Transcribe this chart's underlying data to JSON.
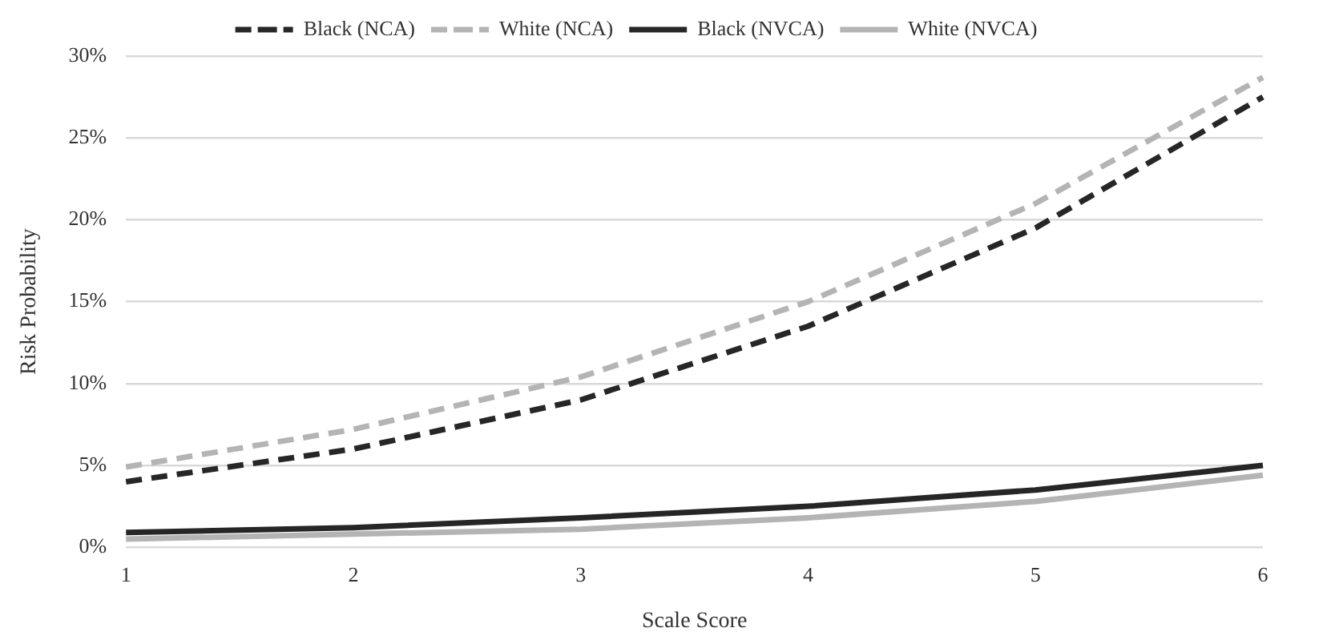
{
  "chart_data": {
    "type": "line",
    "xlabel": "Scale Score",
    "ylabel": "Risk Probability",
    "categories": [
      "1",
      "2",
      "3",
      "4",
      "5",
      "6"
    ],
    "series": [
      {
        "name": "Black (NCA)",
        "color": "#262626",
        "line_style": "dashed",
        "values": [
          4.0,
          6.0,
          9.0,
          13.5,
          19.5,
          27.5
        ]
      },
      {
        "name": "White (NCA)",
        "color": "#b4b4b4",
        "line_style": "dashed",
        "values": [
          4.9,
          7.2,
          10.4,
          15.0,
          21.0,
          28.7
        ]
      },
      {
        "name": "Black (NVCA)",
        "color": "#262626",
        "line_style": "solid",
        "values": [
          0.9,
          1.2,
          1.8,
          2.5,
          3.5,
          5.0
        ]
      },
      {
        "name": "White (NVCA)",
        "color": "#b4b4b4",
        "line_style": "solid",
        "values": [
          0.5,
          0.8,
          1.1,
          1.8,
          2.8,
          4.4
        ]
      }
    ],
    "ylim": [
      0,
      30
    ],
    "yticks": [
      {
        "value": 0,
        "label": "0%"
      },
      {
        "value": 5,
        "label": "5%"
      },
      {
        "value": 10,
        "label": "10%"
      },
      {
        "value": 15,
        "label": "15%"
      },
      {
        "value": 20,
        "label": "20%"
      },
      {
        "value": 25,
        "label": "25%"
      },
      {
        "value": 30,
        "label": "30%"
      }
    ],
    "grid": "y",
    "legend": "top",
    "marker": "none"
  }
}
